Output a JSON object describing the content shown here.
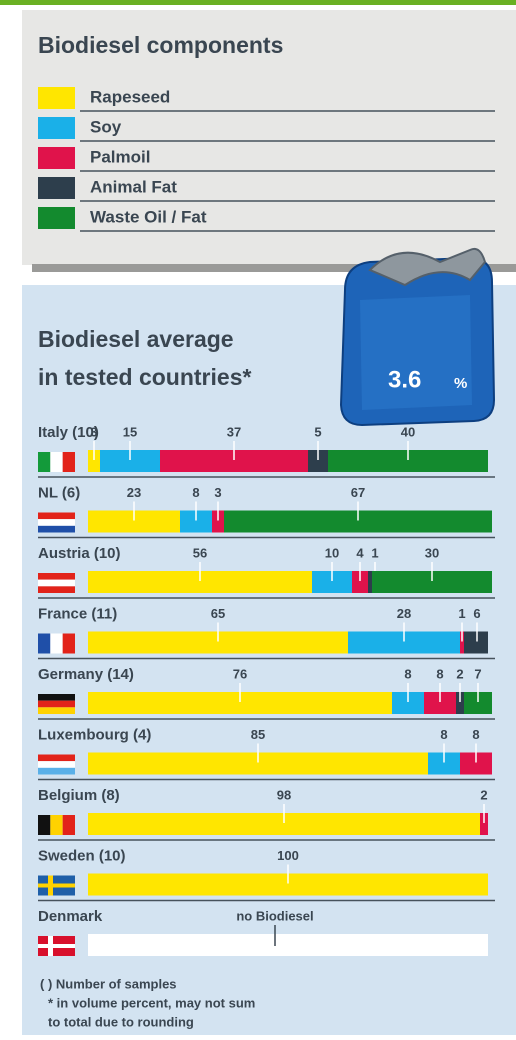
{
  "chart_data": {
    "type": "stacked-bar",
    "legend_title": "Biodiesel components",
    "title": "Biodiesel average in tested countries*",
    "badge_value": 3.6,
    "badge_unit": "%",
    "categories": [
      "Italy (10)",
      "NL (6)",
      "Austria (10)",
      "France (11)",
      "Germany (14)",
      "Luxembourg (4)",
      "Belgium (8)",
      "Sweden (10)",
      "Denmark"
    ],
    "xlim": [
      0,
      100
    ],
    "series": [
      {
        "name": "Rapeseed",
        "color": "#ffe600",
        "values": [
          3,
          23,
          56,
          65,
          76,
          85,
          98,
          100,
          null
        ]
      },
      {
        "name": "Soy",
        "color": "#1ab0e8",
        "values": [
          15,
          8,
          10,
          28,
          8,
          8,
          null,
          null,
          null
        ]
      },
      {
        "name": "Palmoil",
        "color": "#e0134b",
        "values": [
          37,
          3,
          4,
          1,
          8,
          8,
          2,
          null,
          null
        ]
      },
      {
        "name": "Animal Fat",
        "color": "#2d3e4c",
        "values": [
          5,
          null,
          1,
          6,
          2,
          null,
          null,
          null,
          null
        ]
      },
      {
        "name": "Waste Oil / Fat",
        "color": "#138a2e",
        "values": [
          40,
          67,
          30,
          null,
          7,
          null,
          null,
          null,
          null
        ]
      }
    ],
    "annotation": "no Biodiesel",
    "footnotes": [
      "( ) Number of samples",
      "* in volume percent, may not sum",
      "to total due to rounding"
    ]
  }
}
